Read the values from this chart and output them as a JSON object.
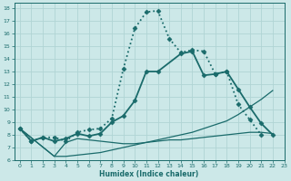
{
  "xlabel": "Humidex (Indice chaleur)",
  "bg_color": "#cce8e8",
  "grid_color": "#b0d4d4",
  "line_color": "#1a6b6b",
  "xlim": [
    -0.5,
    23
  ],
  "ylim": [
    6,
    18.4
  ],
  "xticks": [
    0,
    1,
    2,
    3,
    4,
    5,
    6,
    7,
    8,
    9,
    10,
    11,
    12,
    13,
    14,
    15,
    16,
    17,
    18,
    19,
    20,
    21,
    22,
    23
  ],
  "yticks": [
    6,
    7,
    8,
    9,
    10,
    11,
    12,
    13,
    14,
    15,
    16,
    17,
    18
  ],
  "series": [
    {
      "x": [
        0,
        1,
        2,
        3,
        4,
        5,
        6,
        7,
        8,
        9,
        10,
        11,
        12,
        13,
        14,
        15,
        16,
        17,
        18,
        19,
        20,
        21
      ],
      "y": [
        8.5,
        7.5,
        7.8,
        7.8,
        7.5,
        8.2,
        8.4,
        8.5,
        9.3,
        13.2,
        16.4,
        17.7,
        17.8,
        15.6,
        14.5,
        14.7,
        14.6,
        12.8,
        13.0,
        10.4,
        9.2,
        8.0
      ],
      "marker": "D",
      "markersize": 2.5,
      "linestyle": "dotted",
      "linewidth": 1.3
    },
    {
      "x": [
        0,
        1,
        2,
        3,
        4,
        5,
        6,
        7,
        8,
        9,
        10,
        11,
        12,
        14,
        15,
        16,
        17,
        18,
        19,
        20,
        21,
        22
      ],
      "y": [
        8.5,
        7.5,
        7.8,
        7.5,
        7.7,
        8.1,
        7.9,
        8.1,
        9.0,
        9.5,
        10.7,
        13.0,
        13.0,
        14.4,
        14.6,
        12.7,
        12.8,
        13.0,
        11.6,
        10.2,
        8.9,
        8.0
      ],
      "marker": "D",
      "markersize": 2.5,
      "linestyle": "solid",
      "linewidth": 1.3
    },
    {
      "x": [
        0,
        3,
        4,
        5,
        6,
        7,
        8,
        9,
        10,
        11,
        12,
        13,
        14,
        15,
        16,
        17,
        18,
        19,
        20,
        21,
        22
      ],
      "y": [
        8.5,
        6.3,
        6.3,
        6.4,
        6.5,
        6.6,
        6.8,
        7.0,
        7.2,
        7.4,
        7.6,
        7.8,
        8.0,
        8.2,
        8.5,
        8.8,
        9.1,
        9.6,
        10.2,
        10.8,
        11.5
      ],
      "marker": null,
      "markersize": 0,
      "linestyle": "solid",
      "linewidth": 0.9
    },
    {
      "x": [
        0,
        3,
        4,
        5,
        6,
        7,
        8,
        9,
        10,
        11,
        12,
        13,
        14,
        15,
        16,
        17,
        18,
        19,
        20,
        21,
        22
      ],
      "y": [
        8.5,
        6.3,
        7.4,
        7.7,
        7.6,
        7.5,
        7.4,
        7.3,
        7.3,
        7.4,
        7.5,
        7.6,
        7.6,
        7.7,
        7.8,
        7.9,
        8.0,
        8.1,
        8.2,
        8.2,
        8.1
      ],
      "marker": null,
      "markersize": 0,
      "linestyle": "solid",
      "linewidth": 0.9
    }
  ]
}
